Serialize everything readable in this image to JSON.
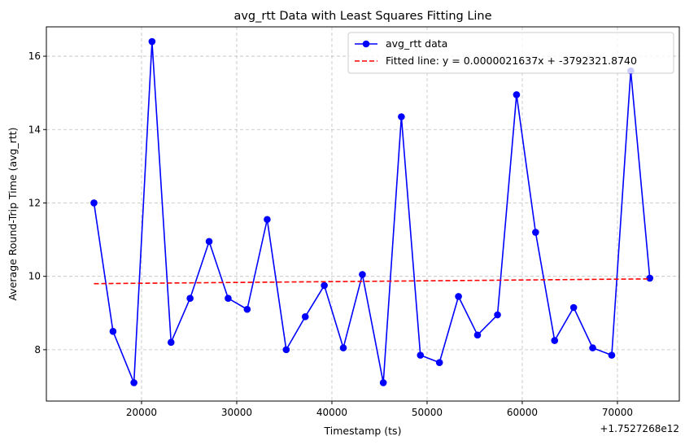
{
  "chart_data": {
    "type": "line",
    "title": "avg_rtt Data with Least Squares Fitting Line",
    "xlabel": "Timestamp (ts)",
    "ylabel": "Average Round-Trip Time (avg_rtt)",
    "x_offset_label": "+1.7527268e12",
    "xlim": [
      10000,
      76500
    ],
    "ylim": [
      6.6,
      16.8
    ],
    "x_ticks": [
      20000,
      30000,
      40000,
      50000,
      60000,
      70000
    ],
    "x_tick_labels": [
      "20000",
      "30000",
      "40000",
      "50000",
      "60000",
      "70000"
    ],
    "y_ticks": [
      8,
      10,
      12,
      14,
      16
    ],
    "y_tick_labels": [
      "8",
      "10",
      "12",
      "14",
      "16"
    ],
    "grid": true,
    "legend_position": "top-right",
    "series": [
      {
        "name": "avg_rtt data",
        "style": "line-with-markers",
        "color": "#0000ff",
        "x": [
          15000,
          17000,
          19200,
          21100,
          23100,
          25100,
          27100,
          29100,
          31100,
          33200,
          35200,
          37200,
          39200,
          41200,
          43200,
          45400,
          47300,
          49300,
          51300,
          53300,
          55300,
          57400,
          59400,
          61400,
          63400,
          65400,
          67400,
          69400,
          71400,
          73400
        ],
        "y": [
          12.0,
          8.5,
          7.1,
          16.4,
          8.2,
          9.4,
          10.95,
          9.4,
          9.1,
          11.55,
          8.0,
          8.9,
          9.75,
          8.05,
          10.05,
          7.1,
          14.35,
          7.85,
          7.65,
          9.45,
          8.4,
          8.95,
          14.95,
          11.2,
          8.25,
          9.15,
          8.05,
          7.85,
          15.6,
          9.95
        ]
      },
      {
        "name": "Fitted line: y = 0.0000021637x + -3792321.8740",
        "style": "dashed-line",
        "color": "#ff0000",
        "x": [
          15000,
          73400
        ],
        "y": [
          9.8,
          9.93
        ]
      }
    ]
  }
}
